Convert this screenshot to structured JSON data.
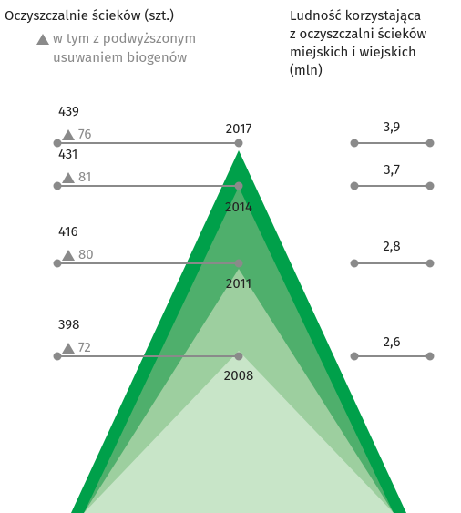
{
  "left_header": {
    "title": "Oczyszczalnie ścieków (szt.)",
    "legend": [
      "w tym z podwyższonym",
      "usuwaniem biogenów"
    ]
  },
  "right_header": {
    "lines": [
      "Ludność korzystająca",
      "z oczyszczalni ścieków",
      "miejskich i wiejskich",
      "(mln)"
    ]
  },
  "rows": [
    {
      "year": "2017",
      "total": "439",
      "biogen": "76",
      "population": "3,9"
    },
    {
      "year": "2014",
      "total": "431",
      "biogen": "81",
      "population": "3,7"
    },
    {
      "year": "2011",
      "total": "416",
      "biogen": "80",
      "population": "2,8"
    },
    {
      "year": "2008",
      "total": "398",
      "biogen": "72",
      "population": "2,6"
    }
  ]
}
